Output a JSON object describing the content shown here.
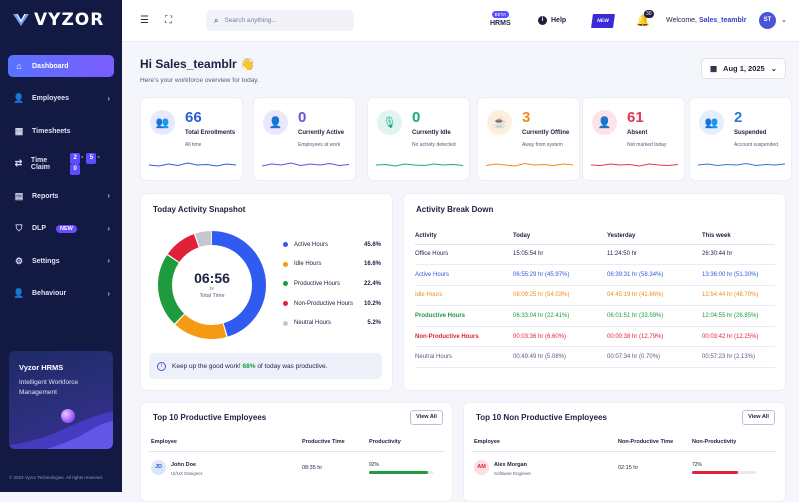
{
  "app": {
    "logo_text": "VYZOR",
    "copyright": "© 2024 Vyzor Technologies. All rights reserved."
  },
  "sidebar": {
    "items": [
      {
        "label": "Dashboard",
        "icon": "home-icon"
      },
      {
        "label": "Employees",
        "icon": "users-icon"
      },
      {
        "label": "Timesheets",
        "icon": "calendar-icon"
      },
      {
        "label": "Time Claim",
        "icon": "swap-icon",
        "digits": [
          "2",
          "5",
          "0"
        ]
      },
      {
        "label": "Reports",
        "icon": "report-icon"
      },
      {
        "label": "DLP",
        "icon": "shield-icon",
        "badge": "NEW"
      },
      {
        "label": "Settings",
        "icon": "gear-icon"
      },
      {
        "label": "Behaviour",
        "icon": "behaviour-icon"
      }
    ],
    "promo": {
      "title": "Vyzor HRMS",
      "subtitle": "Intelligent Workforce Management"
    }
  },
  "header": {
    "search_placeholder": "Search anything...",
    "hrms_badge": "BETA",
    "hrms_label": "HRMS",
    "help_label": "Help",
    "new_label": "NEW",
    "notification_count": "30",
    "welcome_prefix": "Welcome,",
    "username": "Sales_teamblr",
    "avatar_initials": "ST"
  },
  "greeting": {
    "title": "Hi Sales_teamblr 👋",
    "subtitle": "Here's your workforce overview for today."
  },
  "date_picker": {
    "value": "Aug 1, 2025"
  },
  "stats": [
    {
      "value": "66",
      "label": "Total Enrollments",
      "sub": "All time",
      "color": "#2f5bd8",
      "bg": "#e6eafc",
      "icon": "group-icon",
      "glyph": "👥",
      "spark": [
        0.5,
        0.4,
        0.6,
        0.45,
        0.7,
        0.5,
        0.55,
        0.4,
        0.6,
        0.5
      ]
    },
    {
      "value": "0",
      "label": "Currently Active",
      "sub": "Employees at work",
      "color": "#6b4fd6",
      "bg": "#ece8fb",
      "icon": "user-plus-icon",
      "glyph": "👤",
      "spark": [
        0.4,
        0.6,
        0.5,
        0.7,
        0.45,
        0.6,
        0.5,
        0.65,
        0.45,
        0.55
      ]
    },
    {
      "value": "0",
      "label": "Currently Idle",
      "sub": "No activity detected",
      "color": "#1aa58a",
      "bg": "#e0f5ef",
      "icon": "mic-icon",
      "glyph": "🎙",
      "spark": [
        0.5,
        0.55,
        0.4,
        0.6,
        0.5,
        0.45,
        0.6,
        0.5,
        0.55,
        0.45
      ]
    },
    {
      "value": "3",
      "label": "Currently Offline",
      "sub": "Away from system",
      "color": "#f08c1a",
      "bg": "#fdeedd",
      "icon": "coffee-icon",
      "glyph": "☕",
      "spark": [
        0.45,
        0.6,
        0.5,
        0.4,
        0.65,
        0.5,
        0.55,
        0.45,
        0.6,
        0.5
      ]
    },
    {
      "value": "61",
      "label": "Absent",
      "sub": "Not marked today",
      "color": "#e03a4e",
      "bg": "#fde3e6",
      "icon": "person-icon",
      "glyph": "👤",
      "spark": [
        0.5,
        0.45,
        0.6,
        0.5,
        0.55,
        0.4,
        0.6,
        0.5,
        0.45,
        0.55
      ]
    },
    {
      "value": "2",
      "label": "Suspended",
      "sub": "Account suspended",
      "color": "#2f7ad8",
      "bg": "#e4eefc",
      "icon": "users-off-icon",
      "glyph": "👥",
      "spark": [
        0.5,
        0.6,
        0.45,
        0.55,
        0.5,
        0.65,
        0.45,
        0.55,
        0.5,
        0.6
      ]
    }
  ],
  "snapshot": {
    "title": "Today Activity Snapshot",
    "center_time": "06:56",
    "center_unit": "hr",
    "center_label": "Total Time",
    "segments": [
      {
        "label": "Active Hours",
        "percent": 45.6,
        "display": "45.6%",
        "color": "#2f5bf0"
      },
      {
        "label": "Idle Hours",
        "percent": 16.6,
        "display": "16.6%",
        "color": "#f59a12"
      },
      {
        "label": "Productive Hours",
        "percent": 22.4,
        "display": "22.4%",
        "color": "#1e9b3c"
      },
      {
        "label": "Non-Productive Hours",
        "percent": 10.2,
        "display": "10.2%",
        "color": "#e0213a"
      },
      {
        "label": "Neutral Hours",
        "percent": 5.2,
        "display": "5.2%",
        "color": "#c4c7cf"
      }
    ],
    "tip_prefix": "Keep up the good work!",
    "tip_highlight": "68%",
    "tip_suffix": "of today was productive."
  },
  "breakdown": {
    "title": "Activity Break Down",
    "columns": [
      "Activity",
      "Today",
      "Yesterday",
      "This week"
    ],
    "rows": [
      {
        "cells": [
          "Office Hours",
          "15:05:54 hr",
          "11:24:50 hr",
          "26:30:44 hr"
        ],
        "color": "#1b2140",
        "bold": true
      },
      {
        "cells": [
          "Active Hours",
          "06:55:29 hr (45.97%)",
          "06:39:31 hr (58.34%)",
          "13:36:00 hr (51.30%)"
        ],
        "color": "#2f5bd8",
        "bold": false
      },
      {
        "cells": [
          "Idle Hours",
          "08:09:25 hr (54.03%)",
          "04:45:19 hr (41.66%)",
          "12:54:44 hr (48.70%)"
        ],
        "color": "#f08c1a",
        "bold": false
      },
      {
        "cells": [
          "Productive Hours",
          "06:33:04 hr (22.41%)",
          "06:01:51 hr (33.59%)",
          "12:04:55 hr (26.85%)"
        ],
        "color": "#1e9b3c",
        "bold": true
      },
      {
        "cells": [
          "Non-Productive Hours",
          "00:03:36 hr (6.60%)",
          "00:00:38 hr (12.79%)",
          "00:03:42 hr (12.25%)"
        ],
        "color": "#e0213a",
        "bold": true
      },
      {
        "cells": [
          "Neutral Hours",
          "00:49:49 hr (5.08%)",
          "00:07:34 hr (0.70%)",
          "00:57:23 hr (2.13%)"
        ],
        "color": "#55607f",
        "bold": false
      }
    ]
  },
  "top_productive": {
    "title": "Top 10 Productive Employees",
    "view_all": "View All",
    "columns": [
      "Employee",
      "Productive Time",
      "Productivity"
    ],
    "rows": [
      {
        "initials": "JD",
        "name": "John Doe",
        "role": "UI/UX Designer",
        "time": "08:35 hr",
        "percent": 92,
        "percent_label": "92%",
        "color": "#1e9b3c"
      }
    ]
  },
  "top_nonproductive": {
    "title": "Top 10 Non Productive Employees",
    "view_all": "View All",
    "columns": [
      "Employee",
      "Non-Productive Time",
      "Non-Productivity"
    ],
    "rows": [
      {
        "initials": "AM",
        "name": "Alex Morgan",
        "role": "Software Engineer",
        "time": "02:15 hr",
        "percent": 72,
        "percent_label": "72%",
        "color": "#e0213a"
      }
    ]
  }
}
